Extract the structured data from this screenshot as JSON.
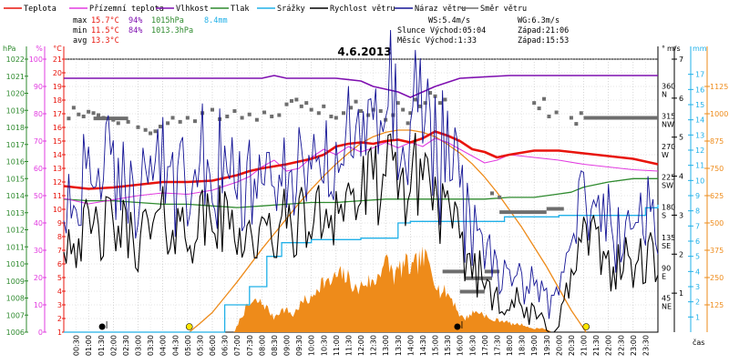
{
  "chart_data": {
    "type": "line",
    "title": "4.6.2013",
    "colors": {
      "temp": "#e8140c",
      "feels": "#e23ce0",
      "hum": "#7f10b0",
      "press": "#2e8a2e",
      "rain": "#20b0e8",
      "wind": "#000000",
      "gust": "#141495",
      "dir": "#6e6e6e",
      "sun": "#ee8b1a"
    },
    "legend": [
      {
        "key": "temp",
        "label": "Teplota"
      },
      {
        "key": "feels",
        "label": "Přízemní teplota"
      },
      {
        "key": "hum",
        "label": "Vlhkost"
      },
      {
        "key": "press",
        "label": "Tlak"
      },
      {
        "key": "rain",
        "label": "Srážky"
      },
      {
        "key": "wind",
        "label": "Rychlost větru"
      },
      {
        "key": "gust",
        "label": "Náraz větru"
      },
      {
        "key": "dir",
        "label": "Směr větru"
      }
    ],
    "stats": {
      "max_label": "max",
      "max_temp": "15.7°C",
      "max_hum": "94%",
      "max_press": "1015hPa",
      "rain_total": "8.4mm",
      "min_label": "min",
      "min_temp": "11.5°C",
      "min_hum": "84%",
      "min_press": "1013.3hPa",
      "avg_label": "avg",
      "avg_temp": "13.3°C",
      "ws": "WS:5.4m/s",
      "wg": "WG:6.3m/s",
      "sun_rise": "Slunce Východ:05:04",
      "sun_set": "Západ:21:06",
      "moon_rise": "Měsíc  Východ:1:33",
      "moon_set": "Západ:15:53"
    },
    "axes": {
      "hpa": {
        "label": "hPa",
        "min": 1006,
        "max": 1022,
        "ticks": [
          "1006",
          "1007",
          "1008",
          "1009",
          "1010",
          "1011",
          "1012",
          "1013",
          "1014",
          "1015",
          "1016",
          "1017",
          "1018",
          "1019",
          "1020",
          "1021",
          "1022"
        ]
      },
      "pct": {
        "label": "%",
        "min": 0,
        "max": 100,
        "ticks": [
          "0",
          "10",
          "20",
          "30",
          "40",
          "50",
          "60",
          "70",
          "80",
          "90",
          "100"
        ]
      },
      "degc": {
        "label": "°C",
        "min": 1,
        "max": 21,
        "ticks": [
          "1",
          "2",
          "3",
          "4",
          "5",
          "6",
          "7",
          "8",
          "9",
          "10",
          "11",
          "12",
          "13",
          "14",
          "15",
          "16",
          "17",
          "18",
          "19",
          "20",
          "21"
        ]
      },
      "dir": {
        "label": "°",
        "ticks": [
          {
            "deg": "360",
            "name": "N"
          },
          {
            "deg": "315",
            "name": "NW"
          },
          {
            "deg": "270",
            "name": "W"
          },
          {
            "deg": "225",
            "name": "SW"
          },
          {
            "deg": "180",
            "name": "S"
          },
          {
            "deg": "135",
            "name": "SE"
          },
          {
            "deg": "90",
            "name": "E"
          },
          {
            "deg": "45",
            "name": "NE"
          }
        ]
      },
      "ms": {
        "label": "m/s",
        "min": 0,
        "max": 7,
        "ticks": [
          "1",
          "2",
          "3",
          "4",
          "5",
          "6",
          "7"
        ]
      },
      "mm": {
        "label": "mm",
        "min": 0,
        "max": 18,
        "ticks": [
          "1",
          "2",
          "3",
          "4",
          "5",
          "6",
          "7",
          "8",
          "9",
          "10",
          "11",
          "12",
          "13",
          "14",
          "15",
          "16",
          "17"
        ]
      },
      "solar": {
        "min": 0,
        "max": 1250,
        "ticks": [
          "125",
          "250",
          "375",
          "500",
          "625",
          "750",
          "875",
          "1000",
          "1125"
        ]
      },
      "x": {
        "label": "čas",
        "min": 0,
        "max": 24,
        "ticks": [
          "00:30",
          "01:00",
          "01:30",
          "02:00",
          "02:30",
          "03:00",
          "03:30",
          "04:00",
          "04:30",
          "05:00",
          "05:30",
          "06:00",
          "06:30",
          "07:00",
          "07:30",
          "08:00",
          "08:30",
          "09:00",
          "09:30",
          "10:00",
          "10:30",
          "11:00",
          "11:30",
          "12:00",
          "12:30",
          "13:00",
          "13:30",
          "14:00",
          "14:30",
          "15:00",
          "15:30",
          "16:00",
          "16:30",
          "17:00",
          "17:30",
          "18:00",
          "18:30",
          "19:00",
          "19:30",
          "20:00",
          "20:30",
          "21:00",
          "21:30",
          "22:00",
          "22:30",
          "23:00",
          "23:30"
        ]
      }
    },
    "series": {
      "temp": {
        "x": [
          0,
          1,
          2,
          3,
          4,
          5,
          6,
          6.5,
          7,
          7.5,
          8,
          9,
          10,
          10.5,
          11,
          11.5,
          12,
          12.5,
          13,
          13.5,
          14,
          14.5,
          15,
          15.5,
          16,
          16.5,
          17,
          17.5,
          18,
          19,
          20,
          21,
          22,
          23,
          24
        ],
        "y": [
          11.7,
          11.5,
          11.6,
          11.8,
          12.0,
          12.0,
          12.1,
          12.3,
          12.5,
          12.8,
          13.0,
          13.3,
          13.7,
          14.0,
          14.6,
          14.8,
          14.9,
          14.8,
          15.0,
          15.1,
          14.9,
          15.2,
          15.7,
          15.4,
          15.0,
          14.4,
          14.2,
          13.8,
          14.0,
          14.3,
          14.3,
          14.1,
          13.9,
          13.7,
          13.3
        ]
      },
      "feels": {
        "x": [
          0,
          1,
          2,
          3,
          4,
          5,
          6,
          6.5,
          7,
          7.5,
          8,
          8.5,
          9,
          9.5,
          10,
          10.5,
          11,
          11.5,
          12,
          12.5,
          13,
          13.5,
          14,
          14.5,
          15,
          15.5,
          16,
          16.5,
          17,
          17.5,
          18,
          19,
          20,
          21,
          22,
          23,
          24
        ],
        "y": [
          10.8,
          10.4,
          10.7,
          11.0,
          11.2,
          11.1,
          11.4,
          11.7,
          12.0,
          12.4,
          13.1,
          13.6,
          12.8,
          13.0,
          13.8,
          14.4,
          14.0,
          14.6,
          14.2,
          14.5,
          14.9,
          14.5,
          14.9,
          14.6,
          15.2,
          14.9,
          14.4,
          13.9,
          13.4,
          13.6,
          14.0,
          13.8,
          13.6,
          13.3,
          13.1,
          12.9,
          12.8
        ]
      },
      "hum": {
        "x": [
          0,
          2,
          4,
          6,
          8,
          8.5,
          9,
          10,
          11,
          12,
          12.5,
          13,
          13.5,
          14,
          14.5,
          15,
          16,
          18,
          20,
          22,
          24
        ],
        "y": [
          93,
          93,
          93,
          93,
          93,
          94,
          93,
          93,
          93,
          92,
          90,
          89,
          88,
          86,
          88,
          90,
          93,
          94,
          94,
          94,
          94
        ]
      },
      "press": {
        "x": [
          0,
          1,
          2,
          3,
          4,
          5,
          6,
          7,
          8,
          9,
          10,
          11,
          12,
          13,
          14,
          15,
          16,
          17,
          18,
          19,
          20,
          20.5,
          21,
          22,
          23,
          24
        ],
        "y": [
          1013.8,
          1013.7,
          1013.7,
          1013.6,
          1013.5,
          1013.5,
          1013.4,
          1013.3,
          1013.4,
          1013.5,
          1013.6,
          1013.6,
          1013.7,
          1013.8,
          1013.8,
          1013.8,
          1013.8,
          1013.8,
          1013.9,
          1013.9,
          1014.1,
          1014.2,
          1014.5,
          1014.8,
          1015.0,
          1015.0
        ]
      },
      "rain": {
        "x": [
          0,
          5.8,
          6.5,
          7.5,
          8.2,
          8.8,
          10,
          12,
          13.2,
          13.5,
          14,
          16,
          17,
          17.8,
          18.5,
          19.5,
          20,
          21,
          22,
          23,
          23.5,
          24
        ],
        "y": [
          0,
          0,
          1.8,
          3,
          5,
          5.9,
          6.1,
          6.2,
          6.2,
          7.2,
          7.3,
          7.3,
          7.3,
          7.6,
          7.6,
          7.6,
          7.7,
          7.7,
          7.7,
          7.7,
          8.2,
          8.4
        ]
      },
      "wind_base": {
        "x": [
          0,
          1,
          2,
          3,
          4,
          5,
          6,
          7,
          8,
          9,
          10,
          11,
          12,
          13,
          14,
          14.5,
          15,
          16,
          17,
          18,
          19,
          20,
          21,
          22,
          23,
          24
        ],
        "y": [
          2.5,
          2.5,
          2.7,
          2.4,
          2.8,
          2.6,
          2.9,
          2.7,
          2.3,
          2.8,
          2.8,
          3.3,
          3.5,
          4.0,
          3.7,
          4.4,
          3.5,
          2.2,
          1.3,
          0.8,
          0.3,
          0.2,
          2.5,
          1.8,
          1.7,
          1.9
        ]
      },
      "dir_points": [
        [
          0.2,
          317
        ],
        [
          0.4,
          333
        ],
        [
          0.6,
          323
        ],
        [
          0.8,
          320
        ],
        [
          1.0,
          327
        ],
        [
          1.2,
          325
        ],
        [
          1.4,
          322
        ],
        [
          1.6,
          318
        ],
        [
          2.0,
          315
        ],
        [
          2.2,
          310
        ],
        [
          2.6,
          312
        ],
        [
          3.0,
          304
        ],
        [
          3.3,
          300
        ],
        [
          3.5,
          295
        ],
        [
          3.7,
          298
        ],
        [
          3.9,
          305
        ],
        [
          4.2,
          310
        ],
        [
          4.4,
          318
        ],
        [
          4.7,
          312
        ],
        [
          5.0,
          318
        ],
        [
          5.3,
          313
        ],
        [
          5.6,
          325
        ],
        [
          6.0,
          330
        ],
        [
          6.3,
          316
        ],
        [
          6.6,
          320
        ],
        [
          6.9,
          328
        ],
        [
          7.2,
          318
        ],
        [
          7.5,
          323
        ],
        [
          7.8,
          315
        ],
        [
          8.1,
          326
        ],
        [
          8.4,
          320
        ],
        [
          8.7,
          322
        ],
        [
          9.0,
          338
        ],
        [
          9.2,
          343
        ],
        [
          9.4,
          345
        ],
        [
          9.6,
          335
        ],
        [
          9.8,
          340
        ],
        [
          10.0,
          330
        ],
        [
          10.3,
          325
        ],
        [
          10.5,
          335
        ],
        [
          10.8,
          320
        ],
        [
          11.0,
          318
        ],
        [
          11.3,
          325
        ],
        [
          11.6,
          333
        ],
        [
          11.8,
          342
        ],
        [
          12.0,
          328
        ],
        [
          12.3,
          322
        ],
        [
          12.5,
          330
        ],
        [
          12.8,
          328
        ],
        [
          13.0,
          315
        ],
        [
          13.3,
          322
        ],
        [
          13.5,
          340
        ],
        [
          13.7,
          330
        ],
        [
          13.9,
          310
        ],
        [
          14.0,
          325
        ],
        [
          14.2,
          345
        ],
        [
          14.4,
          335
        ],
        [
          14.6,
          340
        ],
        [
          14.8,
          355
        ],
        [
          15.0,
          350
        ],
        [
          15.2,
          340
        ],
        [
          15.4,
          345
        ],
        [
          17.3,
          206
        ],
        [
          17.6,
          200
        ],
        [
          19.0,
          340
        ],
        [
          19.2,
          332
        ],
        [
          19.4,
          346
        ],
        [
          19.6,
          320
        ],
        [
          19.9,
          326
        ],
        [
          20.5,
          318
        ],
        [
          20.7,
          309
        ],
        [
          20.9,
          325
        ]
      ],
      "dir_segments": [
        {
          "x1": 1.2,
          "x2": 2.6,
          "deg": 317
        },
        {
          "x1": 15.3,
          "x2": 16.2,
          "deg": 90
        },
        {
          "x1": 16.2,
          "x2": 17.3,
          "deg": 80
        },
        {
          "x1": 16.0,
          "x2": 17.0,
          "deg": 60
        },
        {
          "x1": 17.0,
          "x2": 17.6,
          "deg": 90
        },
        {
          "x1": 17.6,
          "x2": 19.5,
          "deg": 178
        },
        {
          "x1": 19.5,
          "x2": 20.2,
          "deg": 183
        },
        {
          "x1": 21.0,
          "x2": 24.0,
          "deg": 318
        }
      ],
      "solar": {
        "x": [
          5.07,
          5.5,
          6,
          6.5,
          7,
          7.5,
          8,
          8.5,
          9,
          9.5,
          10,
          10.5,
          11,
          11.5,
          12,
          12.5,
          13,
          13.5,
          14,
          14.5,
          15,
          15.5,
          16,
          16.5,
          17,
          17.5,
          18,
          18.5,
          19,
          19.5,
          20,
          20.5,
          21.1
        ],
        "y": [
          0,
          40,
          90,
          160,
          230,
          305,
          380,
          450,
          520,
          590,
          655,
          715,
          770,
          820,
          865,
          895,
          915,
          925,
          925,
          915,
          895,
          860,
          820,
          770,
          710,
          640,
          560,
          480,
          390,
          300,
          200,
          100,
          0
        ]
      },
      "rad_blobs": [
        {
          "x": 7.8,
          "w": 0.9,
          "h": 150
        },
        {
          "x": 8.9,
          "w": 0.7,
          "h": 110
        },
        {
          "x": 9.9,
          "w": 0.9,
          "h": 160
        },
        {
          "x": 10.5,
          "w": 0.8,
          "h": 250
        },
        {
          "x": 11.2,
          "w": 1.2,
          "h": 280
        },
        {
          "x": 12.3,
          "w": 1.0,
          "h": 250
        },
        {
          "x": 13.0,
          "w": 0.8,
          "h": 340
        },
        {
          "x": 13.8,
          "w": 1.0,
          "h": 330
        },
        {
          "x": 14.5,
          "w": 1.0,
          "h": 360
        },
        {
          "x": 15.3,
          "w": 0.9,
          "h": 200
        },
        {
          "x": 15.9,
          "w": 0.8,
          "h": 80
        },
        {
          "x": 16.7,
          "w": 0.8,
          "h": 100
        },
        {
          "x": 17.5,
          "w": 1.0,
          "h": 60
        },
        {
          "x": 18.3,
          "w": 0.8,
          "h": 40
        },
        {
          "x": 19.2,
          "w": 0.5,
          "h": 20
        }
      ],
      "moon_marks": [
        1.55,
        15.9
      ],
      "sun_marks": [
        5.07,
        21.1
      ]
    }
  }
}
